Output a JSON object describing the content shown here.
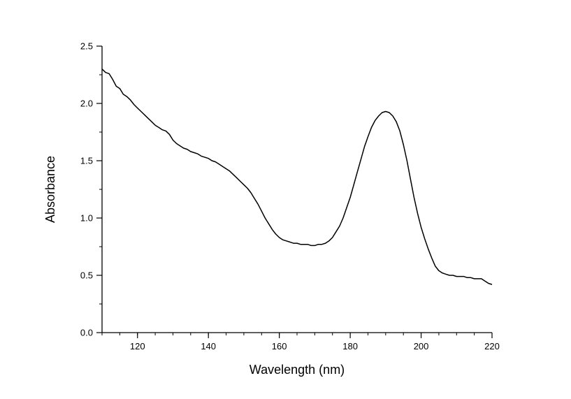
{
  "chart_data": {
    "type": "line",
    "title": "",
    "xlabel": "Wavelength (nm)",
    "ylabel": "Absorbance",
    "xlim": [
      110,
      220
    ],
    "ylim": [
      0.0,
      2.5
    ],
    "xticks": [
      120,
      140,
      160,
      180,
      200,
      220
    ],
    "xtick_labels": [
      "120",
      "140",
      "160",
      "180",
      "200",
      "220"
    ],
    "yticks": [
      0.0,
      0.5,
      1.0,
      1.5,
      2.0,
      2.5
    ],
    "ytick_labels": [
      "0.0",
      "0.5",
      "1.0",
      "1.5",
      "2.0",
      "2.5"
    ],
    "grid": false,
    "line_color": "#000000",
    "series": [
      {
        "x": [
          110,
          111,
          112,
          113,
          114,
          115,
          116,
          117,
          118,
          119,
          120,
          121,
          122,
          123,
          124,
          125,
          126,
          127,
          128,
          129,
          130,
          131,
          132,
          133,
          134,
          135,
          136,
          137,
          138,
          139,
          140,
          141,
          142,
          143,
          144,
          145,
          146,
          147,
          148,
          149,
          150,
          151,
          152,
          153,
          154,
          155,
          156,
          157,
          158,
          159,
          160,
          161,
          162,
          163,
          164,
          165,
          166,
          167,
          168,
          169,
          170,
          171,
          172,
          173,
          174,
          175,
          176,
          177,
          178,
          179,
          180,
          181,
          182,
          183,
          184,
          185,
          186,
          187,
          188,
          189,
          190,
          191,
          192,
          193,
          194,
          195,
          196,
          197,
          198,
          199,
          200,
          201,
          202,
          203,
          204,
          205,
          206,
          207,
          208,
          209,
          210,
          211,
          212,
          213,
          214,
          215,
          216,
          217,
          218,
          219,
          220
        ],
        "values": [
          2.3,
          2.27,
          2.26,
          2.21,
          2.15,
          2.13,
          2.08,
          2.06,
          2.03,
          1.99,
          1.96,
          1.93,
          1.9,
          1.87,
          1.84,
          1.81,
          1.79,
          1.77,
          1.76,
          1.73,
          1.68,
          1.65,
          1.63,
          1.61,
          1.6,
          1.58,
          1.57,
          1.56,
          1.54,
          1.53,
          1.52,
          1.5,
          1.49,
          1.47,
          1.45,
          1.43,
          1.41,
          1.38,
          1.35,
          1.32,
          1.29,
          1.26,
          1.22,
          1.17,
          1.12,
          1.06,
          1.0,
          0.95,
          0.9,
          0.86,
          0.83,
          0.81,
          0.8,
          0.79,
          0.78,
          0.78,
          0.77,
          0.77,
          0.77,
          0.76,
          0.76,
          0.77,
          0.77,
          0.78,
          0.8,
          0.83,
          0.88,
          0.93,
          1.0,
          1.09,
          1.18,
          1.29,
          1.4,
          1.51,
          1.62,
          1.71,
          1.79,
          1.85,
          1.89,
          1.92,
          1.93,
          1.92,
          1.89,
          1.84,
          1.76,
          1.64,
          1.5,
          1.34,
          1.18,
          1.04,
          0.92,
          0.82,
          0.73,
          0.65,
          0.58,
          0.54,
          0.52,
          0.51,
          0.5,
          0.5,
          0.49,
          0.49,
          0.49,
          0.48,
          0.48,
          0.47,
          0.47,
          0.47,
          0.45,
          0.43,
          0.42
        ]
      }
    ]
  }
}
